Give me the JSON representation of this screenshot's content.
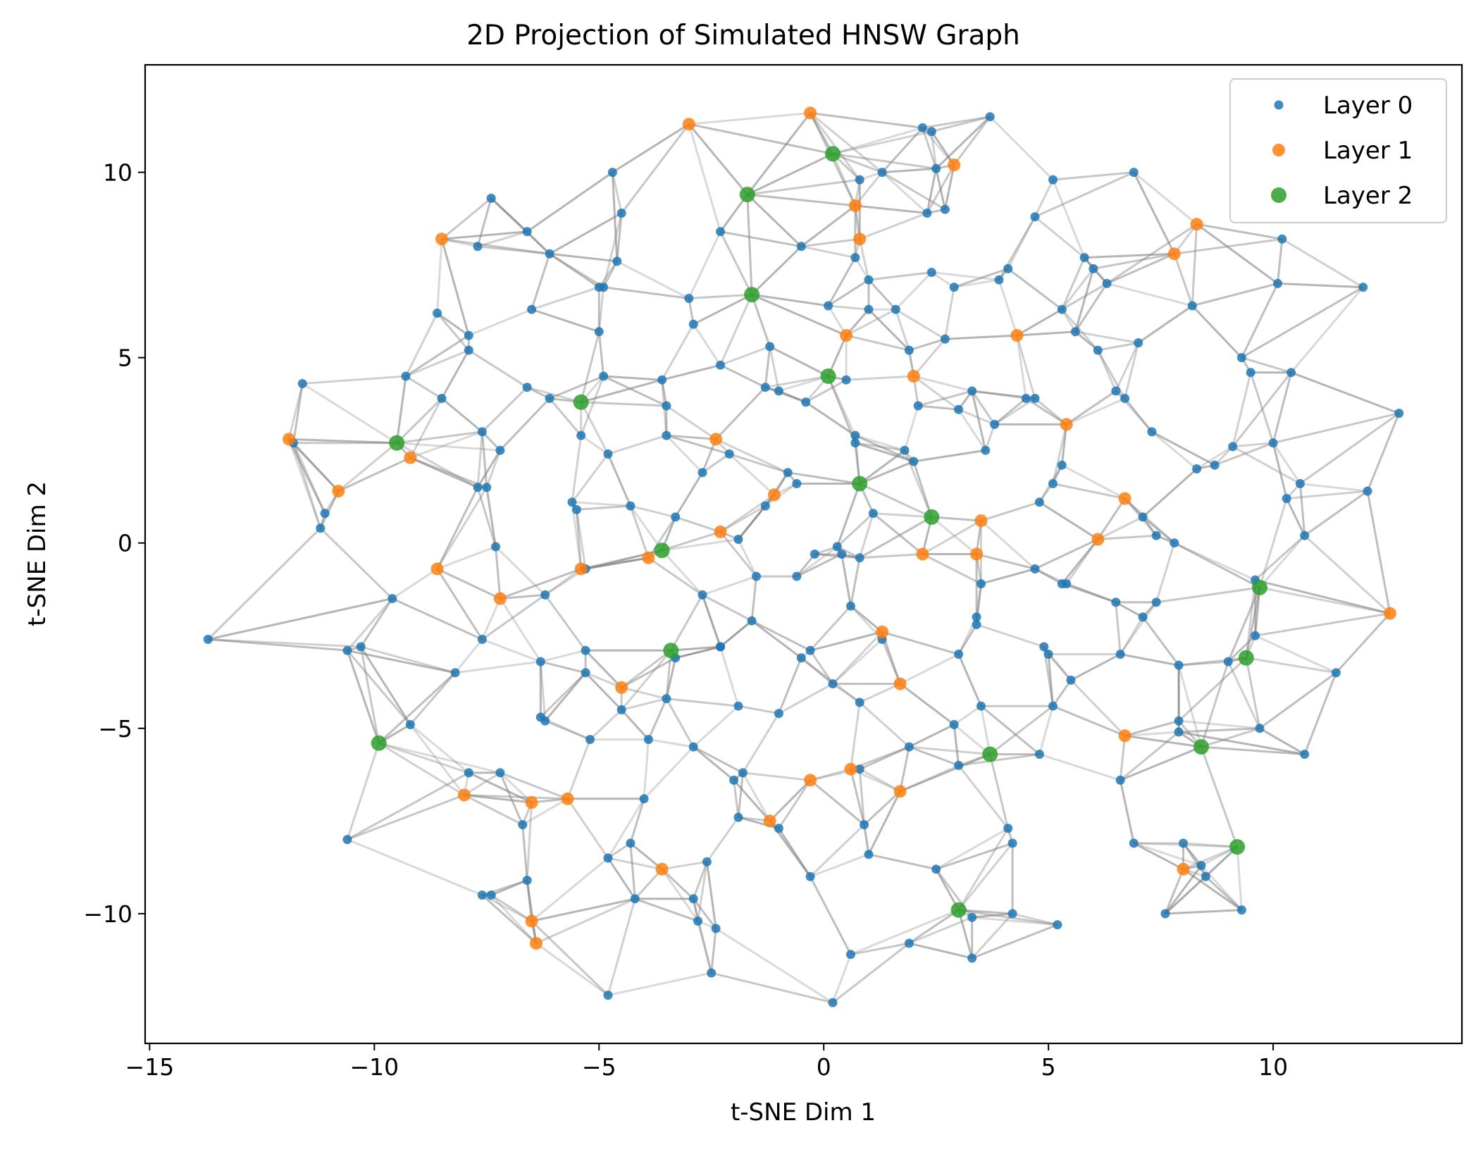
{
  "chart_data": {
    "type": "scatter",
    "title": "2D Projection of Simulated HNSW Graph",
    "xlabel": "t-SNE Dim 1",
    "ylabel": "t-SNE Dim 2",
    "xlim": [
      -15.1,
      14.2
    ],
    "ylim": [
      -13.5,
      12.9
    ],
    "xticks": [
      -15,
      -10,
      -5,
      0,
      5,
      10
    ],
    "yticks": [
      -10,
      -5,
      0,
      5,
      10
    ],
    "xtick_labels": [
      "−15",
      "−10",
      "−5",
      "0",
      "5",
      "10"
    ],
    "ytick_labels": [
      "−10",
      "−5",
      "0",
      "5",
      "10"
    ],
    "grid": false,
    "legend_position": "top-right",
    "edge_color": "#808080",
    "series": [
      {
        "name": "Layer 0",
        "color": "#1f77b4",
        "points": [
          [
            -11.8,
            2.7
          ],
          [
            -11.6,
            4.3
          ],
          [
            -11.1,
            0.8
          ],
          [
            -11.2,
            0.4
          ],
          [
            -13.7,
            -2.6
          ],
          [
            -10.6,
            -2.9
          ],
          [
            -10.3,
            -2.8
          ],
          [
            -9.6,
            -1.5
          ],
          [
            -9.3,
            4.5
          ],
          [
            -9.2,
            -4.9
          ],
          [
            -10.6,
            -8.0
          ],
          [
            -8.6,
            6.2
          ],
          [
            -8.5,
            3.9
          ],
          [
            -8.2,
            -3.5
          ],
          [
            -7.9,
            -6.2
          ],
          [
            -7.6,
            -9.5
          ],
          [
            -7.4,
            -9.5
          ],
          [
            -7.2,
            -6.2
          ],
          [
            -7.7,
            1.5
          ],
          [
            -7.5,
            1.5
          ],
          [
            -7.6,
            3.0
          ],
          [
            -7.2,
            2.5
          ],
          [
            -7.3,
            -0.1
          ],
          [
            -7.6,
            -2.6
          ],
          [
            -7.9,
            5.6
          ],
          [
            -7.9,
            5.2
          ],
          [
            -7.7,
            8.0
          ],
          [
            -7.4,
            9.3
          ],
          [
            -6.6,
            8.4
          ],
          [
            -6.5,
            6.3
          ],
          [
            -6.1,
            7.8
          ],
          [
            -6.6,
            4.2
          ],
          [
            -6.1,
            3.9
          ],
          [
            -6.7,
            -7.6
          ],
          [
            -6.6,
            -9.1
          ],
          [
            -6.3,
            -4.7
          ],
          [
            -6.2,
            -4.8
          ],
          [
            -6.2,
            -1.4
          ],
          [
            -6.3,
            -3.2
          ],
          [
            -5.6,
            1.1
          ],
          [
            -5.5,
            0.9
          ],
          [
            -5.4,
            2.9
          ],
          [
            -5.3,
            -0.7
          ],
          [
            -5.3,
            -2.9
          ],
          [
            -5.3,
            -3.5
          ],
          [
            -5.2,
            -5.3
          ],
          [
            -5.0,
            6.9
          ],
          [
            -5.0,
            5.7
          ],
          [
            -4.9,
            4.5
          ],
          [
            -4.9,
            6.9
          ],
          [
            -4.7,
            10.0
          ],
          [
            -4.8,
            2.4
          ],
          [
            -4.5,
            8.9
          ],
          [
            -4.6,
            7.6
          ],
          [
            -4.3,
            1.0
          ],
          [
            -4.8,
            -8.5
          ],
          [
            -4.8,
            -12.2
          ],
          [
            -4.5,
            -4.5
          ],
          [
            -4.2,
            -9.6
          ],
          [
            -4.3,
            -8.1
          ],
          [
            -4.0,
            -6.9
          ],
          [
            -3.6,
            4.4
          ],
          [
            -3.5,
            3.7
          ],
          [
            -3.5,
            2.9
          ],
          [
            -3.5,
            -4.2
          ],
          [
            -3.9,
            -5.3
          ],
          [
            -3.3,
            0.7
          ],
          [
            -3.3,
            -3.1
          ],
          [
            -3.0,
            6.6
          ],
          [
            -2.9,
            5.9
          ],
          [
            -2.9,
            -5.5
          ],
          [
            -2.9,
            -9.6
          ],
          [
            -2.8,
            -10.2
          ],
          [
            -2.7,
            1.9
          ],
          [
            -2.7,
            -1.4
          ],
          [
            -2.6,
            -8.6
          ],
          [
            -2.5,
            -11.6
          ],
          [
            -2.4,
            -10.4
          ],
          [
            -2.3,
            8.4
          ],
          [
            -2.3,
            4.8
          ],
          [
            -2.3,
            -2.8
          ],
          [
            -2.3,
            -2.8
          ],
          [
            -2.1,
            2.4
          ],
          [
            -2.0,
            -6.4
          ],
          [
            -1.9,
            0.1
          ],
          [
            -1.9,
            -4.4
          ],
          [
            -1.8,
            -6.2
          ],
          [
            -1.9,
            -7.4
          ],
          [
            -1.6,
            -2.1
          ],
          [
            -1.5,
            -0.9
          ],
          [
            -1.3,
            4.2
          ],
          [
            -1.2,
            5.3
          ],
          [
            -1.3,
            1.0
          ],
          [
            -1.0,
            4.1
          ],
          [
            -1.0,
            -4.6
          ],
          [
            -1.0,
            -7.7
          ],
          [
            -0.8,
            1.9
          ],
          [
            -0.6,
            1.6
          ],
          [
            -0.6,
            -0.9
          ],
          [
            -0.5,
            8.0
          ],
          [
            -0.5,
            -3.1
          ],
          [
            -0.4,
            3.8
          ],
          [
            -0.3,
            -2.9
          ],
          [
            -0.3,
            -9.0
          ],
          [
            -0.2,
            -0.3
          ],
          [
            0.1,
            6.4
          ],
          [
            0.2,
            -3.8
          ],
          [
            0.2,
            -12.4
          ],
          [
            0.3,
            -0.1
          ],
          [
            0.4,
            -0.3
          ],
          [
            0.5,
            4.4
          ],
          [
            0.6,
            -1.7
          ],
          [
            0.6,
            -11.1
          ],
          [
            0.7,
            2.9
          ],
          [
            0.7,
            2.7
          ],
          [
            0.8,
            9.8
          ],
          [
            0.7,
            7.7
          ],
          [
            0.8,
            -0.4
          ],
          [
            0.8,
            -4.3
          ],
          [
            0.8,
            -6.1
          ],
          [
            0.9,
            -7.6
          ],
          [
            1.0,
            7.1
          ],
          [
            1.0,
            6.3
          ],
          [
            1.0,
            -8.4
          ],
          [
            1.1,
            0.8
          ],
          [
            1.3,
            10.0
          ],
          [
            1.3,
            -2.6
          ],
          [
            1.6,
            6.3
          ],
          [
            1.8,
            2.5
          ],
          [
            1.9,
            5.2
          ],
          [
            1.9,
            -5.5
          ],
          [
            1.9,
            -10.8
          ],
          [
            2.0,
            2.2
          ],
          [
            2.1,
            3.7
          ],
          [
            2.2,
            11.2
          ],
          [
            2.3,
            8.9
          ],
          [
            2.4,
            11.1
          ],
          [
            2.4,
            7.3
          ],
          [
            2.5,
            10.1
          ],
          [
            2.5,
            -8.8
          ],
          [
            2.7,
            5.5
          ],
          [
            2.7,
            9.0
          ],
          [
            2.9,
            6.9
          ],
          [
            2.9,
            -4.9
          ],
          [
            3.0,
            3.6
          ],
          [
            3.0,
            -3.0
          ],
          [
            3.0,
            -6.0
          ],
          [
            3.3,
            4.1
          ],
          [
            3.3,
            -10.1
          ],
          [
            3.3,
            -11.2
          ],
          [
            3.4,
            -2.0
          ],
          [
            3.4,
            -2.2
          ],
          [
            3.5,
            -1.1
          ],
          [
            3.5,
            -4.4
          ],
          [
            3.6,
            2.5
          ],
          [
            3.7,
            11.5
          ],
          [
            3.8,
            3.2
          ],
          [
            3.9,
            7.1
          ],
          [
            4.1,
            7.4
          ],
          [
            4.1,
            -7.7
          ],
          [
            4.2,
            -8.1
          ],
          [
            4.2,
            -10.0
          ],
          [
            4.5,
            3.9
          ],
          [
            4.7,
            8.8
          ],
          [
            4.7,
            3.9
          ],
          [
            4.7,
            -0.7
          ],
          [
            4.8,
            1.1
          ],
          [
            4.8,
            -5.7
          ],
          [
            4.9,
            -2.8
          ],
          [
            5.0,
            -3.0
          ],
          [
            5.1,
            9.8
          ],
          [
            5.1,
            1.6
          ],
          [
            5.1,
            -4.4
          ],
          [
            5.2,
            -10.3
          ],
          [
            5.3,
            6.3
          ],
          [
            5.3,
            2.1
          ],
          [
            5.3,
            -1.1
          ],
          [
            5.4,
            -1.1
          ],
          [
            5.5,
            -3.7
          ],
          [
            5.6,
            5.7
          ],
          [
            5.8,
            7.7
          ],
          [
            6.0,
            7.4
          ],
          [
            6.1,
            5.2
          ],
          [
            6.3,
            7.0
          ],
          [
            6.5,
            4.1
          ],
          [
            6.5,
            -1.6
          ],
          [
            6.6,
            -3.0
          ],
          [
            6.6,
            -6.4
          ],
          [
            6.7,
            3.9
          ],
          [
            6.9,
            10.0
          ],
          [
            6.9,
            -8.1
          ],
          [
            7.0,
            5.4
          ],
          [
            7.1,
            0.7
          ],
          [
            7.1,
            -2.0
          ],
          [
            7.3,
            3.0
          ],
          [
            7.4,
            0.2
          ],
          [
            7.4,
            -1.6
          ],
          [
            7.6,
            -10.0
          ],
          [
            7.8,
            0.0
          ],
          [
            7.9,
            -3.3
          ],
          [
            7.9,
            -4.8
          ],
          [
            7.9,
            -5.1
          ],
          [
            8.0,
            -8.1
          ],
          [
            8.2,
            6.4
          ],
          [
            8.3,
            2.0
          ],
          [
            8.4,
            -8.7
          ],
          [
            8.5,
            -9.0
          ],
          [
            8.7,
            2.1
          ],
          [
            9.0,
            -3.2
          ],
          [
            9.1,
            2.6
          ],
          [
            9.3,
            -9.9
          ],
          [
            9.3,
            5.0
          ],
          [
            9.5,
            4.6
          ],
          [
            9.6,
            -1.0
          ],
          [
            9.6,
            -2.5
          ],
          [
            9.7,
            -5.0
          ],
          [
            10.0,
            2.7
          ],
          [
            10.1,
            7.0
          ],
          [
            10.2,
            8.2
          ],
          [
            10.3,
            1.2
          ],
          [
            10.4,
            4.6
          ],
          [
            10.6,
            1.6
          ],
          [
            10.7,
            0.2
          ],
          [
            10.7,
            -5.7
          ],
          [
            11.4,
            -3.5
          ],
          [
            12.0,
            6.9
          ],
          [
            12.1,
            1.4
          ],
          [
            12.8,
            3.5
          ]
        ]
      },
      {
        "name": "Layer 1",
        "color": "#ff7f0e",
        "points": [
          [
            -11.9,
            2.8
          ],
          [
            -10.8,
            1.4
          ],
          [
            -9.2,
            2.3
          ],
          [
            -8.5,
            8.2
          ],
          [
            -8.6,
            -0.7
          ],
          [
            -7.2,
            -1.5
          ],
          [
            -8.0,
            -6.8
          ],
          [
            -6.5,
            -10.2
          ],
          [
            -6.4,
            -10.8
          ],
          [
            -6.5,
            -7.0
          ],
          [
            -5.7,
            -6.9
          ],
          [
            -5.4,
            -0.7
          ],
          [
            -3.9,
            -0.4
          ],
          [
            -4.5,
            -3.9
          ],
          [
            -3.6,
            -8.8
          ],
          [
            -3.0,
            11.3
          ],
          [
            -2.4,
            2.8
          ],
          [
            -2.3,
            0.3
          ],
          [
            -1.2,
            -7.5
          ],
          [
            -1.1,
            1.3
          ],
          [
            -0.3,
            11.6
          ],
          [
            -0.3,
            -6.4
          ],
          [
            0.5,
            5.6
          ],
          [
            0.6,
            -6.1
          ],
          [
            0.7,
            9.1
          ],
          [
            0.8,
            8.2
          ],
          [
            1.3,
            -2.4
          ],
          [
            1.7,
            -3.8
          ],
          [
            1.7,
            -6.7
          ],
          [
            2.0,
            4.5
          ],
          [
            2.2,
            -0.3
          ],
          [
            2.9,
            10.2
          ],
          [
            3.5,
            0.6
          ],
          [
            3.4,
            -0.3
          ],
          [
            4.3,
            5.6
          ],
          [
            5.4,
            3.2
          ],
          [
            6.1,
            0.1
          ],
          [
            6.7,
            1.2
          ],
          [
            6.7,
            -5.2
          ],
          [
            7.8,
            7.8
          ],
          [
            8.0,
            -8.8
          ],
          [
            8.3,
            8.6
          ],
          [
            12.6,
            -1.9
          ]
        ]
      },
      {
        "name": "Layer 2",
        "color": "#2ca02c",
        "points": [
          [
            -9.5,
            2.7
          ],
          [
            -9.9,
            -5.4
          ],
          [
            -5.4,
            3.8
          ],
          [
            -3.6,
            -0.2
          ],
          [
            -3.4,
            -2.9
          ],
          [
            -1.7,
            9.4
          ],
          [
            -1.6,
            6.7
          ],
          [
            0.1,
            4.5
          ],
          [
            0.2,
            10.5
          ],
          [
            0.8,
            1.6
          ],
          [
            2.4,
            0.7
          ],
          [
            3.0,
            -9.9
          ],
          [
            3.7,
            -5.7
          ],
          [
            8.4,
            -5.5
          ],
          [
            9.2,
            -8.2
          ],
          [
            9.4,
            -3.1
          ],
          [
            9.7,
            -1.2
          ]
        ]
      }
    ]
  }
}
